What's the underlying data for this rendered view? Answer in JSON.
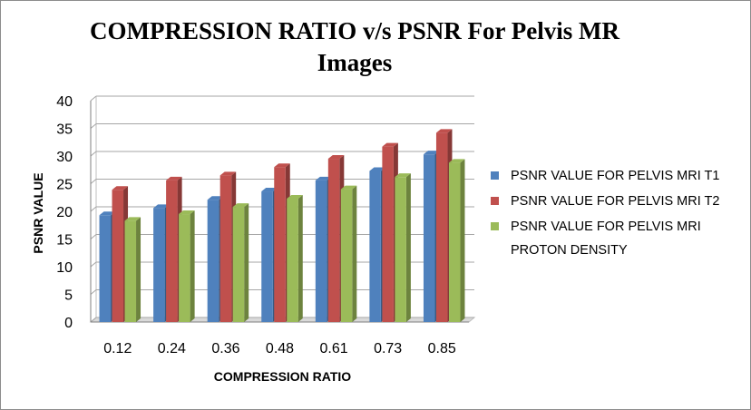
{
  "chart_data": {
    "type": "bar",
    "title": "COMPRESSION RATIO  v/s PSNR For Pelvis MR Images",
    "xlabel": "COMPRESSION RATIO",
    "ylabel": "PSNR VALUE",
    "categories": [
      "0.12",
      "0.24",
      "0.36",
      "0.48",
      "0.61",
      "0.73",
      "0.85"
    ],
    "ylim": [
      0,
      40
    ],
    "yticks": [
      "0",
      "5",
      "10",
      "15",
      "20",
      "25",
      "30",
      "35",
      "40"
    ],
    "grid": true,
    "legend_position": "right",
    "series": [
      {
        "name": "PSNR VALUE FOR PELVIS MRI T1",
        "color": "#4f81bd",
        "values": [
          19.3,
          20.6,
          22.1,
          23.6,
          25.6,
          27.3,
          30.3
        ]
      },
      {
        "name": "PSNR VALUE FOR PELVIS MRI T2",
        "color": "#c0504d",
        "values": [
          23.9,
          25.6,
          26.5,
          28.0,
          29.5,
          31.7,
          34.2
        ]
      },
      {
        "name": "PSNR VALUE FOR PELVIS MRI PROTON DENSITY",
        "color": "#9bbb59",
        "values": [
          18.3,
          19.5,
          20.8,
          22.3,
          24.0,
          26.2,
          28.8
        ]
      }
    ]
  }
}
